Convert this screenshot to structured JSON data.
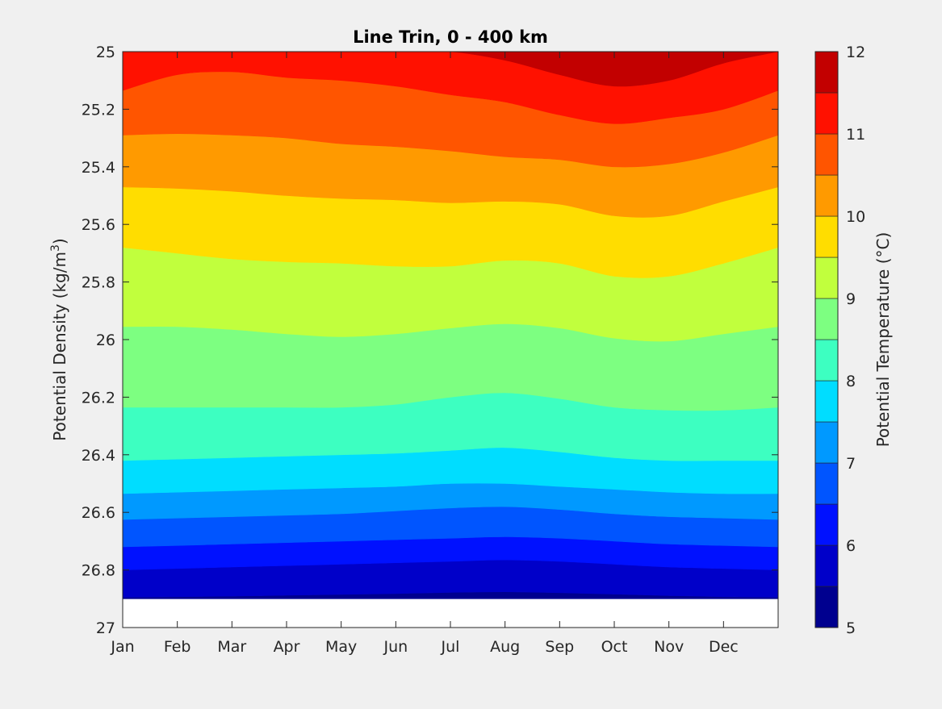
{
  "chart_data": {
    "type": "heatmap",
    "title": "Line Trin, 0 - 400 km",
    "xlabel": "",
    "ylabel": "Potential Density (kg/m³)",
    "ylabel_parts": {
      "text": "Potential Density (kg/m",
      "sup": "3",
      "close": ")"
    },
    "colorbar_label": "Potential Temperature (°C)",
    "x_ticks": [
      "Jan",
      "Feb",
      "Mar",
      "Apr",
      "May",
      "Jun",
      "Jul",
      "Aug",
      "Sep",
      "Oct",
      "Nov",
      "Dec"
    ],
    "x_range": [
      0,
      12
    ],
    "y_ticks": [
      "25",
      "25.2",
      "25.4",
      "25.6",
      "25.8",
      "26",
      "26.2",
      "26.4",
      "26.6",
      "26.8",
      "27"
    ],
    "y_range": [
      25,
      27
    ],
    "y_reversed": true,
    "colorbar_ticks": [
      "5",
      "6",
      "7",
      "8",
      "9",
      "10",
      "11",
      "12"
    ],
    "colorbar_range": [
      5,
      12
    ],
    "contour_levels": [
      5,
      5.5,
      6,
      6.5,
      7,
      7.5,
      8,
      8.5,
      9,
      9.5,
      10,
      10.5,
      11,
      11.5,
      12
    ],
    "colors": [
      "#00008f",
      "#0000c9",
      "#0011ff",
      "#0055ff",
      "#0099ff",
      "#00ddff",
      "#3dffc1",
      "#7dff81",
      "#c1ff3d",
      "#ffdd00",
      "#ff9a00",
      "#ff5500",
      "#ff1100",
      "#c20000"
    ],
    "no_data_below_density": 26.9,
    "contour_boundaries": [
      {
        "temp": 5.5,
        "density": [
          26.895,
          26.893,
          26.891,
          26.888,
          26.885,
          26.882,
          26.878,
          26.876,
          26.879,
          26.884,
          26.889,
          26.893,
          26.895
        ]
      },
      {
        "temp": 6.0,
        "density": [
          26.8,
          26.795,
          26.79,
          26.785,
          26.78,
          26.775,
          26.77,
          26.765,
          26.77,
          26.78,
          26.79,
          26.795,
          26.8
        ]
      },
      {
        "temp": 6.5,
        "density": [
          26.72,
          26.715,
          26.71,
          26.705,
          26.7,
          26.695,
          26.69,
          26.685,
          26.69,
          26.7,
          26.71,
          26.715,
          26.72
        ]
      },
      {
        "temp": 7.0,
        "density": [
          26.625,
          26.62,
          26.615,
          26.61,
          26.605,
          26.595,
          26.585,
          26.58,
          26.59,
          26.605,
          26.615,
          26.62,
          26.625
        ]
      },
      {
        "temp": 7.5,
        "density": [
          26.535,
          26.53,
          26.525,
          26.52,
          26.515,
          26.51,
          26.5,
          26.5,
          26.51,
          26.52,
          26.53,
          26.535,
          26.535
        ]
      },
      {
        "temp": 8.0,
        "density": [
          26.42,
          26.415,
          26.41,
          26.405,
          26.4,
          26.395,
          26.385,
          26.375,
          26.39,
          26.41,
          26.42,
          26.42,
          26.42
        ]
      },
      {
        "temp": 8.5,
        "density": [
          26.235,
          26.235,
          26.235,
          26.235,
          26.235,
          26.225,
          26.2,
          26.185,
          26.205,
          26.235,
          26.245,
          26.245,
          26.235
        ]
      },
      {
        "temp": 9.0,
        "density": [
          25.955,
          25.955,
          25.965,
          25.98,
          25.99,
          25.98,
          25.96,
          25.945,
          25.96,
          25.995,
          26.005,
          25.98,
          25.955
        ]
      },
      {
        "temp": 9.5,
        "density": [
          25.68,
          25.7,
          25.72,
          25.73,
          25.735,
          25.745,
          25.745,
          25.725,
          25.735,
          25.78,
          25.78,
          25.735,
          25.68
        ]
      },
      {
        "temp": 10.0,
        "density": [
          25.47,
          25.475,
          25.485,
          25.5,
          25.51,
          25.515,
          25.525,
          25.52,
          25.53,
          25.57,
          25.57,
          25.52,
          25.47
        ]
      },
      {
        "temp": 10.5,
        "density": [
          25.29,
          25.285,
          25.29,
          25.3,
          25.32,
          25.33,
          25.345,
          25.365,
          25.375,
          25.4,
          25.39,
          25.35,
          25.29
        ]
      },
      {
        "temp": 11.0,
        "density": [
          25.135,
          25.08,
          25.07,
          25.09,
          25.1,
          25.12,
          25.15,
          25.175,
          25.22,
          25.25,
          25.23,
          25.2,
          25.135
        ]
      },
      {
        "temp": 11.5,
        "density": [
          25.0,
          25.0,
          25.0,
          25.0,
          25.0,
          25.0,
          25.0,
          25.03,
          25.08,
          25.12,
          25.1,
          25.04,
          25.0
        ]
      }
    ]
  }
}
